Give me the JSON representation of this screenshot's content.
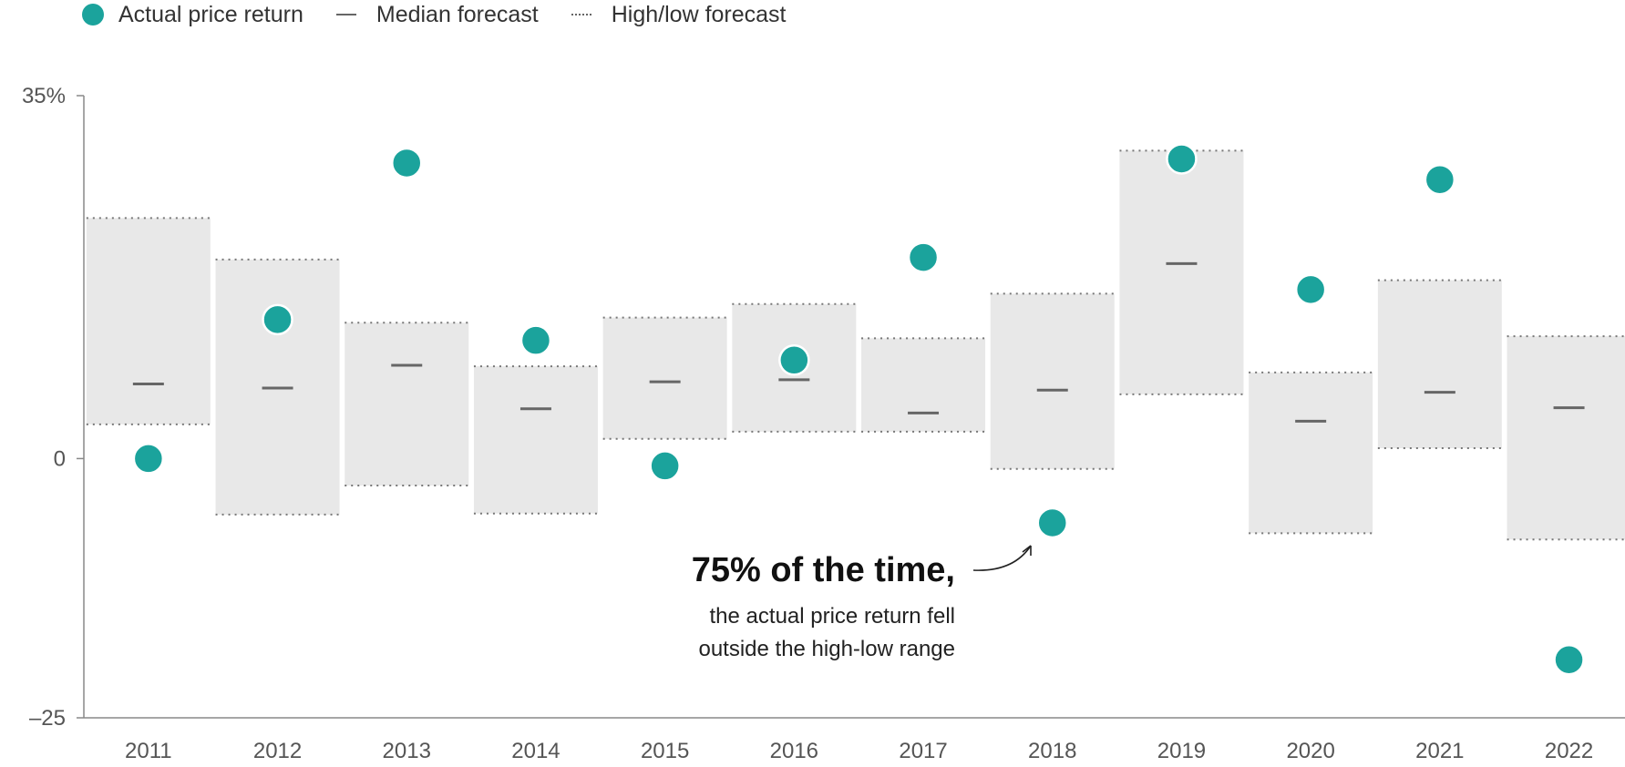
{
  "legend": {
    "actual": "Actual price return",
    "median": "Median forecast",
    "range": "High/low forecast"
  },
  "annotation": {
    "headline": "75% of the time,",
    "line1": "the actual price return fell",
    "line2": "outside the high-low range"
  },
  "colors": {
    "dot": "#1ba39c",
    "band": "#e8e8e8",
    "median": "#666666",
    "axis": "#888888"
  },
  "chart_data": {
    "type": "scatter",
    "title": "",
    "xlabel": "",
    "ylabel": "",
    "ylim": [
      -25,
      35
    ],
    "y_ticks": [
      {
        "value": 35,
        "label": "35%"
      },
      {
        "value": 0,
        "label": "0"
      },
      {
        "value": -25,
        "label": "–25"
      }
    ],
    "categories": [
      "2011",
      "2012",
      "2013",
      "2014",
      "2015",
      "2016",
      "2017",
      "2018",
      "2019",
      "2020",
      "2021",
      "2022"
    ],
    "series": [
      {
        "name": "Actual price return",
        "values": [
          0,
          13.4,
          28.5,
          11.4,
          -0.7,
          9.5,
          19.4,
          -6.2,
          28.9,
          16.3,
          26.9,
          -19.4
        ]
      },
      {
        "name": "Median forecast",
        "values": [
          7.2,
          6.8,
          9.0,
          4.8,
          7.4,
          7.6,
          4.4,
          6.6,
          18.8,
          3.6,
          6.4,
          4.9
        ]
      },
      {
        "name": "High forecast",
        "values": [
          23.2,
          19.2,
          13.1,
          8.9,
          13.6,
          14.9,
          11.6,
          15.9,
          29.7,
          8.3,
          17.2,
          11.8
        ]
      },
      {
        "name": "Low forecast",
        "values": [
          3.3,
          -5.4,
          -2.6,
          -5.3,
          1.9,
          2.6,
          2.6,
          -1.0,
          6.2,
          -7.2,
          1.0,
          -7.8
        ]
      }
    ]
  }
}
